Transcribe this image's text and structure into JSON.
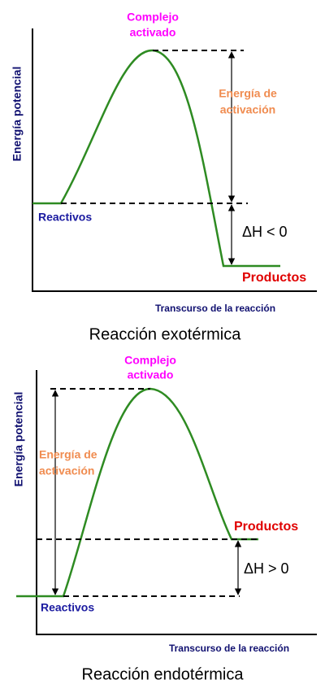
{
  "diagrams": [
    {
      "y_axis_label": "Energía potencial",
      "x_axis_label": "Transcurso de la reacción",
      "peak_label": [
        "Complejo",
        "activado"
      ],
      "activation_label": [
        "Energía de",
        "activación"
      ],
      "reactants_label": "Reactivos",
      "products_label": "Productos",
      "delta_h": "ΔH < 0",
      "caption": "Reacción exotérmica"
    },
    {
      "y_axis_label": "Energía potencial",
      "x_axis_label": "Transcurso de la reacción",
      "peak_label": [
        "Complejo",
        "activado"
      ],
      "activation_label": [
        "Energía de",
        "activación"
      ],
      "reactants_label": "Reactivos",
      "products_label": "Productos",
      "delta_h": "ΔH > 0",
      "caption": "Reacción endotérmica"
    }
  ]
}
